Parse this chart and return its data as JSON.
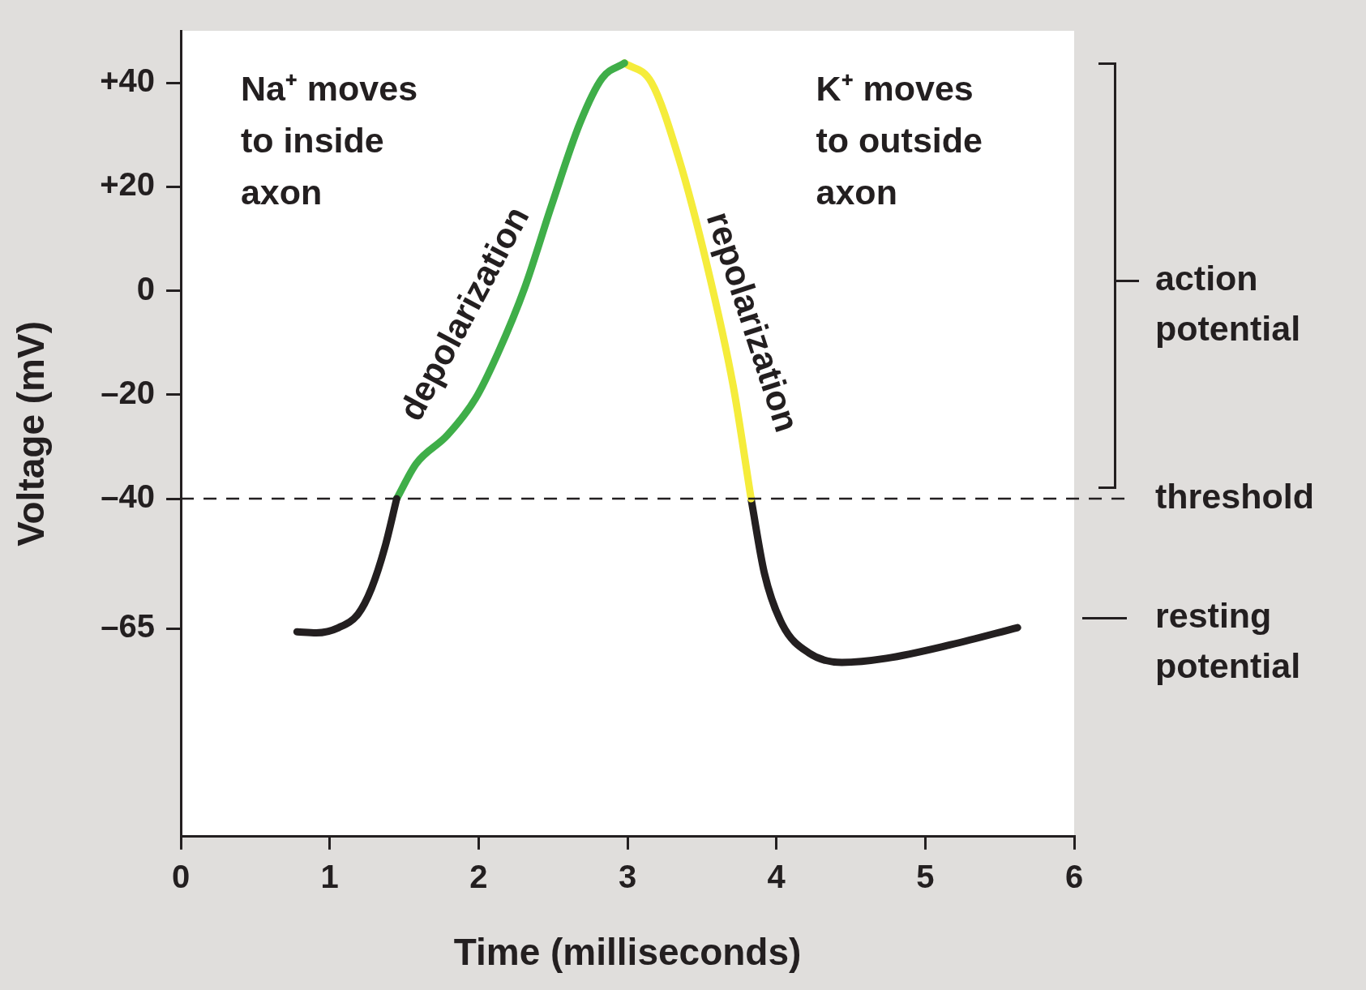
{
  "chart_data": {
    "type": "line",
    "xlabel": "Time (milliseconds)",
    "ylabel": "Voltage (mV)",
    "xlim": [
      0,
      6
    ],
    "ylim": [
      -105,
      50
    ],
    "xticks": [
      0,
      1,
      2,
      3,
      4,
      5,
      6
    ],
    "yticks": [
      {
        "value": 40,
        "label": "+40"
      },
      {
        "value": 20,
        "label": "+20"
      },
      0,
      {
        "value": -20,
        "label": "–20"
      },
      {
        "value": -40,
        "label": "–40"
      },
      {
        "value": -65,
        "label": "–65"
      }
    ],
    "grid": false,
    "series": [
      {
        "color": "#231f20",
        "x": [
          0.78,
          0.91,
          1.06,
          1.19,
          1.28,
          1.37,
          1.45
        ],
        "values": [
          -65.6,
          -65.8,
          -64.8,
          -62.2,
          -57.3,
          -49.4,
          -40
        ]
      },
      {
        "color": "#3fae49",
        "x": [
          1.45,
          1.58,
          1.79,
          1.98,
          2.13,
          2.31,
          2.49,
          2.68,
          2.83,
          2.98
        ],
        "values": [
          -40,
          -33.3,
          -27.8,
          -20.7,
          -12,
          0.6,
          16.4,
          32.2,
          40.9,
          43.8
        ]
      },
      {
        "color": "#f5ec3b",
        "x": [
          2.98,
          3.16,
          3.34,
          3.53,
          3.71,
          3.83
        ],
        "values": [
          43.8,
          40.1,
          25.9,
          5.4,
          -18.3,
          -40
        ]
      },
      {
        "color": "#231f20",
        "x": [
          3.83,
          3.92,
          4.04,
          4.22,
          4.44,
          4.74,
          5.17,
          5.62
        ],
        "values": [
          -40,
          -54.4,
          -64.2,
          -69.7,
          -71.5,
          -70.7,
          -68.1,
          -64.8
        ]
      }
    ],
    "ref_lines": [
      {
        "axis": "y",
        "value": -40,
        "label": "threshold",
        "color": "#231f20",
        "line_style": "dashed"
      }
    ],
    "annotations": [
      "Na⁺ moves to inside axon",
      "K⁺ moves to outside axon",
      "depolarization",
      "repolarization",
      "resting potential",
      "action potential"
    ]
  }
}
